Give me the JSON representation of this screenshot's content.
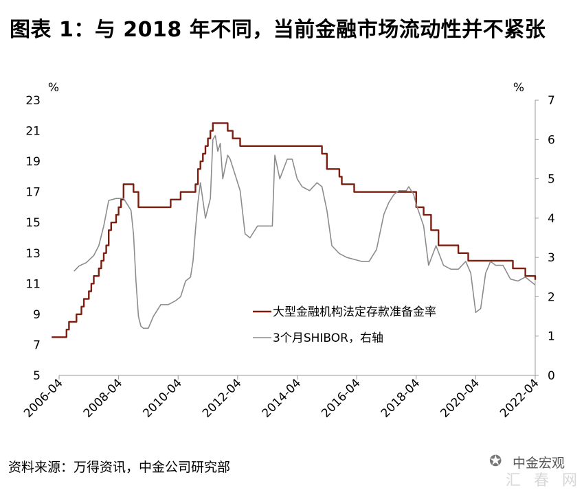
{
  "title": "图表 1：与 2018 年不同，当前金融市场流动性并不紧张",
  "source": "资料来源：万得资讯，中金公司研究部",
  "watermark": {
    "text": "中金宏观",
    "faint": "汇 春 网",
    "icon": "wechat-icon"
  },
  "colors": {
    "rrr": "#7B1E10",
    "shibor": "#8C8C8C",
    "axis": "#999999"
  },
  "chart_data": {
    "type": "line",
    "xaxis": {
      "ticks": [
        "2006-04",
        "2008-04",
        "2010-04",
        "2012-04",
        "2014-04",
        "2016-04",
        "2018-04",
        "2020-04",
        "2022-04"
      ],
      "range": [
        "2006-04",
        "2022-04"
      ]
    },
    "left_axis": {
      "unit": "%",
      "range": [
        5,
        23
      ],
      "ticks": [
        5,
        7,
        9,
        11,
        13,
        15,
        17,
        19,
        21,
        23
      ]
    },
    "right_axis": {
      "unit": "%",
      "range": [
        0,
        7
      ],
      "ticks": [
        0,
        1,
        2,
        3,
        4,
        5,
        6,
        7
      ]
    },
    "legend": {
      "placement": "center-right"
    },
    "series": [
      {
        "name": "大型金融机构法定存款准备金率",
        "axis": "left",
        "style": "step",
        "points": [
          [
            "2006-01",
            7.5
          ],
          [
            "2006-07",
            8.0
          ],
          [
            "2006-08",
            8.5
          ],
          [
            "2006-11",
            9.0
          ],
          [
            "2007-01",
            9.5
          ],
          [
            "2007-02",
            10.0
          ],
          [
            "2007-04",
            10.5
          ],
          [
            "2007-05",
            11.0
          ],
          [
            "2007-06",
            11.5
          ],
          [
            "2007-08",
            12.0
          ],
          [
            "2007-09",
            12.5
          ],
          [
            "2007-10",
            13.0
          ],
          [
            "2007-11",
            13.5
          ],
          [
            "2007-12",
            14.5
          ],
          [
            "2008-01",
            15.0
          ],
          [
            "2008-03",
            15.5
          ],
          [
            "2008-04",
            16.0
          ],
          [
            "2008-05",
            16.5
          ],
          [
            "2008-06",
            17.5
          ],
          [
            "2008-09",
            17.5
          ],
          [
            "2008-10",
            17.0
          ],
          [
            "2008-12",
            16.0
          ],
          [
            "2009-01",
            16.0
          ],
          [
            "2010-01",
            16.5
          ],
          [
            "2010-02",
            16.5
          ],
          [
            "2010-05",
            17.0
          ],
          [
            "2010-11",
            17.5
          ],
          [
            "2010-12",
            18.5
          ],
          [
            "2011-01",
            19.0
          ],
          [
            "2011-02",
            19.5
          ],
          [
            "2011-03",
            20.0
          ],
          [
            "2011-04",
            20.5
          ],
          [
            "2011-05",
            21.0
          ],
          [
            "2011-06",
            21.5
          ],
          [
            "2011-12",
            21.0
          ],
          [
            "2012-02",
            20.5
          ],
          [
            "2012-05",
            20.0
          ],
          [
            "2015-02",
            19.5
          ],
          [
            "2015-04",
            18.5
          ],
          [
            "2015-06",
            18.5
          ],
          [
            "2015-09",
            18.0
          ],
          [
            "2015-10",
            17.5
          ],
          [
            "2016-03",
            17.0
          ],
          [
            "2018-04",
            16.0
          ],
          [
            "2018-07",
            15.5
          ],
          [
            "2018-10",
            14.5
          ],
          [
            "2019-01",
            14.0
          ],
          [
            "2019-01",
            13.5
          ],
          [
            "2019-09",
            13.0
          ],
          [
            "2020-01",
            12.5
          ],
          [
            "2021-07",
            12.0
          ],
          [
            "2021-12",
            11.5
          ],
          [
            "2022-04",
            11.25
          ],
          [
            "2022-04",
            11.25
          ]
        ]
      },
      {
        "name": "3个月SHIBOR，右轴",
        "axis": "right",
        "style": "line",
        "points": [
          [
            "2006-10",
            2.65
          ],
          [
            "2006-12",
            2.78
          ],
          [
            "2007-03",
            2.87
          ],
          [
            "2007-06",
            3.05
          ],
          [
            "2007-08",
            3.3
          ],
          [
            "2007-10",
            3.8
          ],
          [
            "2007-12",
            4.45
          ],
          [
            "2008-03",
            4.5
          ],
          [
            "2008-06",
            4.5
          ],
          [
            "2008-08",
            4.3
          ],
          [
            "2008-09",
            4.2
          ],
          [
            "2008-10",
            3.6
          ],
          [
            "2008-11",
            2.4
          ],
          [
            "2008-12",
            1.5
          ],
          [
            "2009-01",
            1.25
          ],
          [
            "2009-02",
            1.2
          ],
          [
            "2009-04",
            1.2
          ],
          [
            "2009-06",
            1.5
          ],
          [
            "2009-09",
            1.8
          ],
          [
            "2009-12",
            1.8
          ],
          [
            "2010-03",
            1.9
          ],
          [
            "2010-05",
            2.0
          ],
          [
            "2010-07",
            2.4
          ],
          [
            "2010-09",
            2.5
          ],
          [
            "2010-10",
            2.9
          ],
          [
            "2010-11",
            3.7
          ],
          [
            "2010-12",
            4.4
          ],
          [
            "2011-01",
            4.9
          ],
          [
            "2011-03",
            4.0
          ],
          [
            "2011-05",
            4.5
          ],
          [
            "2011-06",
            6.0
          ],
          [
            "2011-07",
            6.1
          ],
          [
            "2011-08",
            5.7
          ],
          [
            "2011-09",
            5.9
          ],
          [
            "2011-10",
            5.0
          ],
          [
            "2011-12",
            5.6
          ],
          [
            "2012-01",
            5.5
          ],
          [
            "2012-03",
            5.1
          ],
          [
            "2012-05",
            4.7
          ],
          [
            "2012-07",
            3.6
          ],
          [
            "2012-09",
            3.5
          ],
          [
            "2012-12",
            3.8
          ],
          [
            "2013-03",
            3.8
          ],
          [
            "2013-06",
            3.8
          ],
          [
            "2013-07",
            5.6
          ],
          [
            "2013-09",
            5.0
          ],
          [
            "2013-12",
            5.5
          ],
          [
            "2014-02",
            5.5
          ],
          [
            "2014-04",
            5.0
          ],
          [
            "2014-06",
            4.8
          ],
          [
            "2014-09",
            4.7
          ],
          [
            "2014-12",
            4.9
          ],
          [
            "2015-02",
            4.8
          ],
          [
            "2015-04",
            4.2
          ],
          [
            "2015-06",
            3.3
          ],
          [
            "2015-09",
            3.1
          ],
          [
            "2015-12",
            3.0
          ],
          [
            "2016-03",
            2.95
          ],
          [
            "2016-06",
            2.9
          ],
          [
            "2016-09",
            2.9
          ],
          [
            "2016-12",
            3.2
          ],
          [
            "2017-03",
            4.1
          ],
          [
            "2017-05",
            4.4
          ],
          [
            "2017-07",
            4.6
          ],
          [
            "2017-09",
            4.7
          ],
          [
            "2017-12",
            4.7
          ],
          [
            "2018-01",
            4.8
          ],
          [
            "2018-03",
            4.6
          ],
          [
            "2018-04",
            4.35
          ],
          [
            "2018-07",
            3.8
          ],
          [
            "2018-09",
            2.8
          ],
          [
            "2018-12",
            3.3
          ],
          [
            "2019-03",
            2.8
          ],
          [
            "2019-06",
            2.7
          ],
          [
            "2019-09",
            2.7
          ],
          [
            "2019-12",
            2.9
          ],
          [
            "2020-02",
            2.6
          ],
          [
            "2020-04",
            1.6
          ],
          [
            "2020-06",
            1.7
          ],
          [
            "2020-08",
            2.6
          ],
          [
            "2020-10",
            2.9
          ],
          [
            "2020-12",
            2.8
          ],
          [
            "2021-03",
            2.8
          ],
          [
            "2021-06",
            2.45
          ],
          [
            "2021-09",
            2.4
          ],
          [
            "2021-12",
            2.5
          ],
          [
            "2022-02",
            2.4
          ],
          [
            "2022-04",
            2.3
          ]
        ]
      }
    ]
  }
}
